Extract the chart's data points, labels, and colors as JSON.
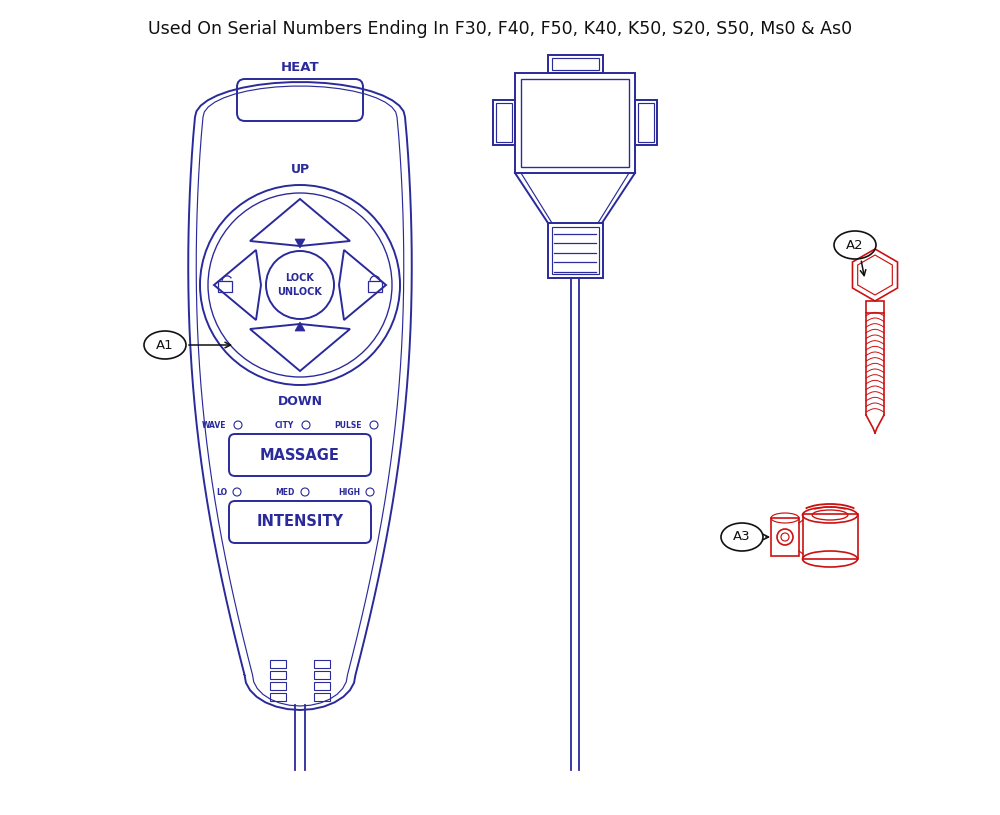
{
  "title": "Used On Serial Numbers Ending In F30, F40, F50, K40, K50, S20, S50, Ms0 & As0",
  "title_fontsize": 12.5,
  "bg_color": "#ffffff",
  "blue_color": "#2a2a9a",
  "red_color": "#cc1111",
  "black_color": "#111111",
  "label_A1": "A1",
  "label_A2": "A2",
  "label_A3": "A3"
}
